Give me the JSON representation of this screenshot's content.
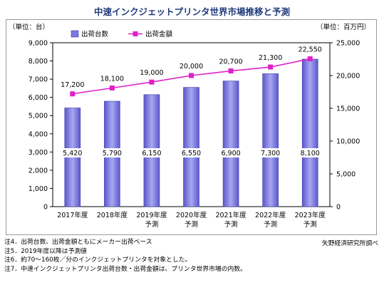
{
  "title": "中速インクジェットプリンタ世界市場推移と予測",
  "chart_data": {
    "type": "bar+line",
    "categories": [
      [
        "2017年度"
      ],
      [
        "2018年度"
      ],
      [
        "2019年度",
        "予測"
      ],
      [
        "2020年度",
        "予測"
      ],
      [
        "2021年度",
        "予測"
      ],
      [
        "2022年度",
        "予測"
      ],
      [
        "2023年度",
        "予測"
      ]
    ],
    "left_axis": {
      "unit": "（単位：台）",
      "ylim": [
        0,
        9000
      ],
      "ticks": [
        "0",
        "1,000",
        "2,000",
        "3,000",
        "4,000",
        "5,000",
        "6,000",
        "7,000",
        "8,000",
        "9,000"
      ]
    },
    "right_axis": {
      "unit": "（単位：百万円）",
      "ylim": [
        0,
        25000
      ],
      "ticks": [
        "0",
        "5,000",
        "10,000",
        "15,000",
        "20,000",
        "25,000"
      ]
    },
    "legend": {
      "position": "top-left"
    },
    "series": [
      {
        "name": "出荷台数",
        "type": "bar",
        "axis": "left",
        "values": [
          5420,
          5790,
          6150,
          6550,
          6900,
          7300,
          8100
        ],
        "labels": [
          "5,420",
          "5,790",
          "6,150",
          "6,550",
          "6,900",
          "7,300",
          "8,100"
        ],
        "color": "#7b79de"
      },
      {
        "name": "出荷金額",
        "type": "line",
        "axis": "right",
        "values": [
          17200,
          18100,
          19000,
          20000,
          20700,
          21300,
          22550
        ],
        "labels": [
          "17,200",
          "18,100",
          "19,000",
          "20,000",
          "20,700",
          "21,300",
          "22,550"
        ],
        "color": "#e020c8"
      }
    ]
  },
  "notes": [
    "注4．出荷台数、出荷金額ともにメーカー出荷ベース",
    "注5．2019年度以降は予測値",
    "注6．約70～160枚／分のインクジェットプリンタを対象とした。",
    "注7．中速インクジェットプリンタ出荷台数・出荷金額は、プリンタ世界市場の内数。"
  ],
  "source": "矢野経済研究所調べ"
}
